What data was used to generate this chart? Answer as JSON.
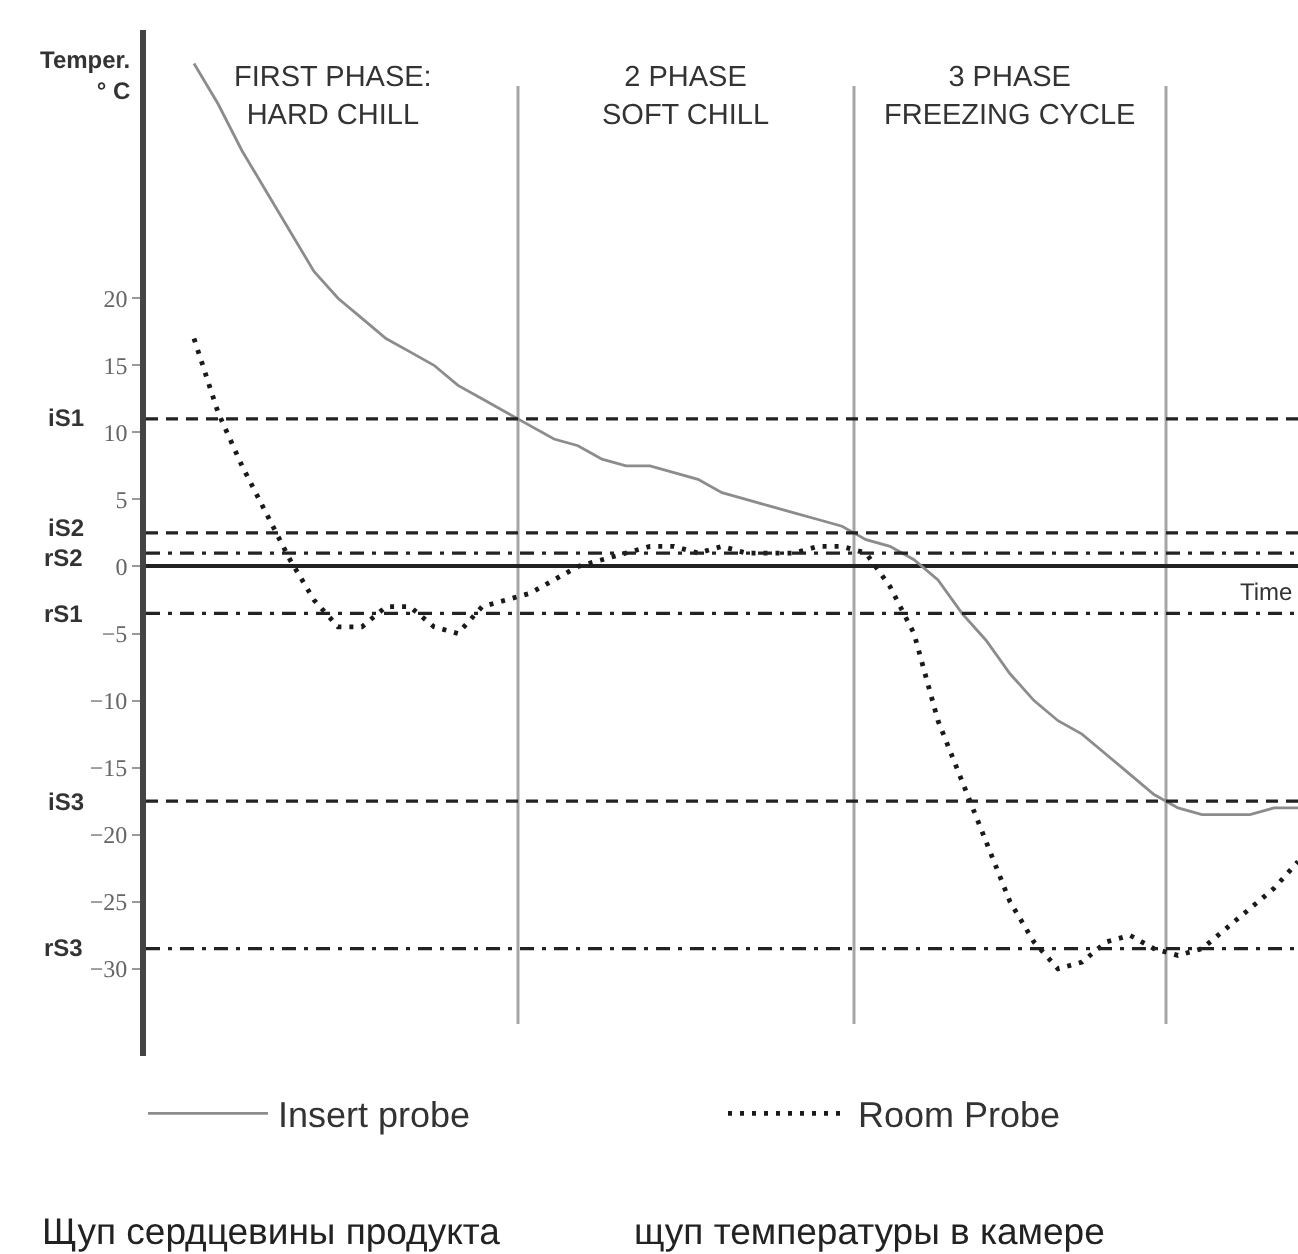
{
  "chart_data": {
    "type": "line",
    "ylabel": "Temper.\n° C",
    "xlabel": "Time",
    "categories": [
      null,
      null,
      null,
      null,
      null,
      null,
      null,
      null,
      null,
      null,
      null,
      null,
      null,
      null,
      null,
      null,
      null,
      null,
      null,
      null,
      null,
      null,
      null,
      null,
      null,
      null,
      null,
      null,
      null,
      null,
      null,
      null,
      null,
      null,
      null,
      null,
      null,
      null,
      null,
      null,
      null,
      null,
      null,
      null,
      null,
      null,
      null,
      null,
      null
    ],
    "ylim": [
      -36.5,
      40
    ],
    "yticks": [
      -30,
      -25,
      -20,
      -15,
      -10,
      -5,
      0,
      5,
      10,
      15,
      20
    ],
    "series": [
      {
        "name": "Insert probe",
        "color": "#8c8c8c",
        "line_style": "solid",
        "values": [
          null,
          null,
          37.5,
          34.5,
          31,
          28,
          25,
          22,
          20,
          18.5,
          17,
          16,
          15,
          13.5,
          12.5,
          11.5,
          10.5,
          9.5,
          9,
          8,
          7.5,
          7.5,
          7,
          6.5,
          5.5,
          5,
          4.5,
          4,
          3.5,
          3,
          2,
          1.5,
          0.5,
          -1,
          -3.5,
          -5.5,
          -8,
          -10,
          -11.5,
          -12.5,
          -14,
          -15.5,
          -17,
          -18,
          -18.5,
          -18.5,
          -18.5,
          -18,
          -18
        ]
      },
      {
        "name": "Room Probe",
        "color": "#1a1a1a",
        "line_style": "dotted",
        "values": [
          null,
          null,
          17,
          11.5,
          7.5,
          4,
          0.5,
          -2.5,
          -4.5,
          -4.5,
          -3,
          -3,
          -4.5,
          -5,
          -3,
          -2.5,
          -2,
          -1,
          0,
          0.5,
          1,
          1.5,
          1.5,
          1,
          1.5,
          1,
          1,
          1,
          1.5,
          1.5,
          1,
          -1.5,
          -5,
          -11.5,
          -16,
          -20.5,
          -25,
          -28,
          -30,
          -29.5,
          -28,
          -27.5,
          -28.5,
          -29,
          -28.5,
          -27,
          -25.5,
          -24,
          -22
        ]
      }
    ],
    "ref_lines": [
      {
        "axis": "y",
        "value": 11,
        "label": "iS1",
        "color": "#222222",
        "line_style": "dashed"
      },
      {
        "axis": "y",
        "value": 2.5,
        "label": "iS2",
        "color": "#222222",
        "line_style": "dashed"
      },
      {
        "axis": "y",
        "value": 1,
        "label": "rS2",
        "color": "#222222",
        "line_style": "dashdot"
      },
      {
        "axis": "y",
        "value": -3.5,
        "label": "rS1",
        "color": "#222222",
        "line_style": "dashdot"
      },
      {
        "axis": "y",
        "value": -17.5,
        "label": "iS3",
        "color": "#222222",
        "line_style": "dashed"
      },
      {
        "axis": "y",
        "value": -28.5,
        "label": "rS3",
        "color": "#222222",
        "line_style": "dashdot"
      }
    ],
    "annotations": [
      "FIRST PHASE:\nHARD CHILL",
      "2 PHASE\nSOFT CHILL",
      "3 PHASE\nFREEZING CYCLE",
      "Щуп сердцевины продукта",
      "щуп температуры в камере"
    ],
    "legend": "bottom"
  }
}
